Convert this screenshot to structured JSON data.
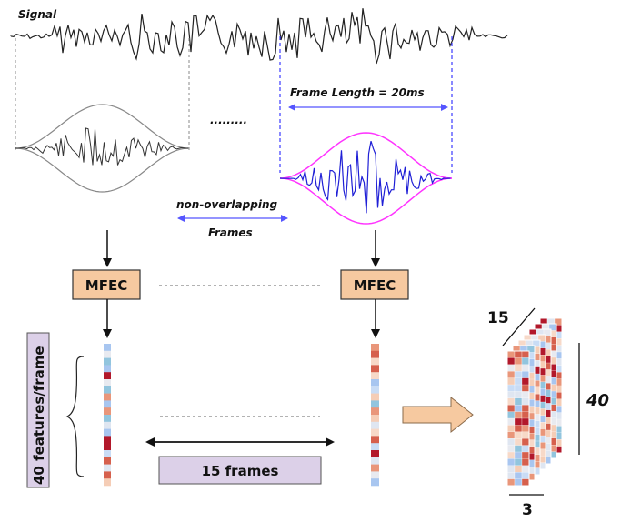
{
  "signal_label": "Signal",
  "frame_length_label": "Frame Length = 20ms",
  "ellipsis_label": ".........",
  "non_overlapping_label": "non-overlapping",
  "frames_label": "Frames",
  "mfec_left_label": "MFEC",
  "mfec_right_label": "MFEC",
  "features_label": "40 features/frame",
  "frames_count_label": "15 frames",
  "cube_depth_label": "15",
  "cube_height_label": "40",
  "cube_width_label": "3",
  "colors": {
    "signal": "#222222",
    "frame_blue": "#1f1fd6",
    "envelope_pink": "#ff33ff",
    "mfec_fill": "#f6c9a0",
    "frames_box_fill": "#dcd0e8",
    "arrow_fill": "#f6c9a0",
    "guide_dashed": "#3b3bff"
  }
}
